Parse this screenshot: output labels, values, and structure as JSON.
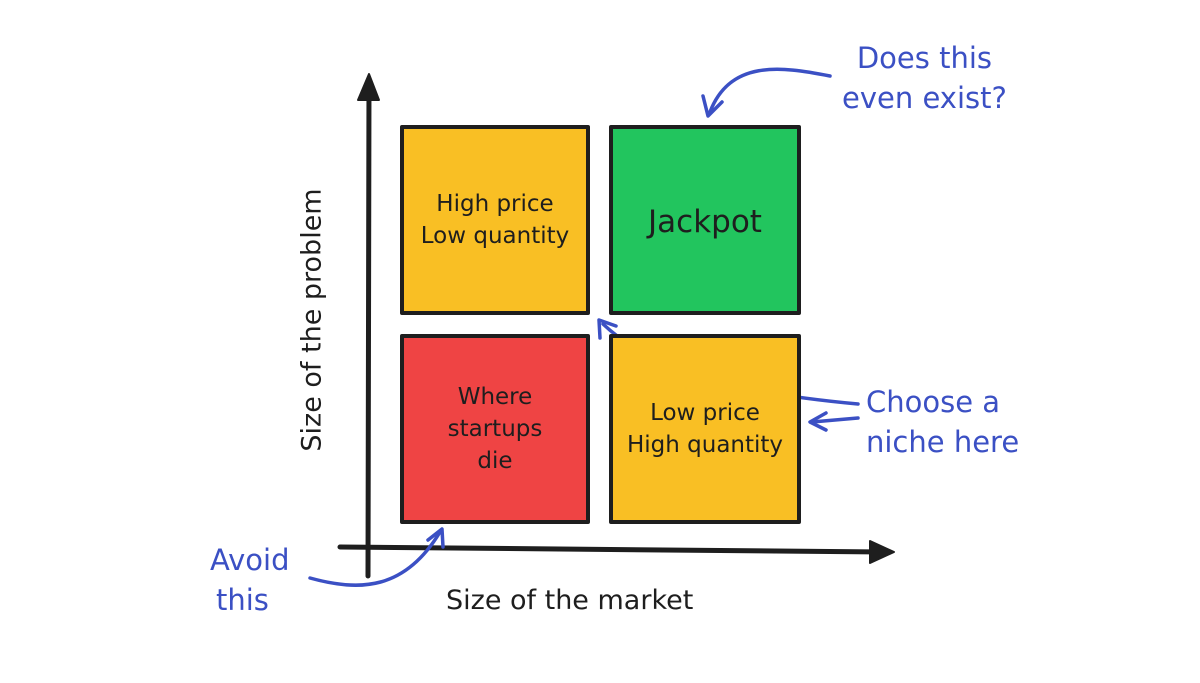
{
  "quadrants": {
    "top_left": {
      "lines": [
        "High price",
        "Low quantity"
      ],
      "color": "#f9bf24"
    },
    "top_right": {
      "lines": [
        "Jackpot"
      ],
      "color": "#22c55e"
    },
    "bottom_left": {
      "lines": [
        "Where",
        "startups",
        "die"
      ],
      "color": "#ef4444"
    },
    "bottom_right": {
      "lines": [
        "Low price",
        "High quantity"
      ],
      "color": "#f9bf24"
    }
  },
  "axes": {
    "x_label": "Size of the market",
    "y_label": "Size of the problem"
  },
  "annotations": {
    "does_this_exist": [
      "Does this",
      "even exist?"
    ],
    "choose_niche": [
      "Choose a",
      "niche here"
    ],
    "avoid_this": [
      "Avoid",
      "this"
    ]
  },
  "colors": {
    "stroke": "#1e1e1e",
    "annotation": "#3b50c4"
  }
}
